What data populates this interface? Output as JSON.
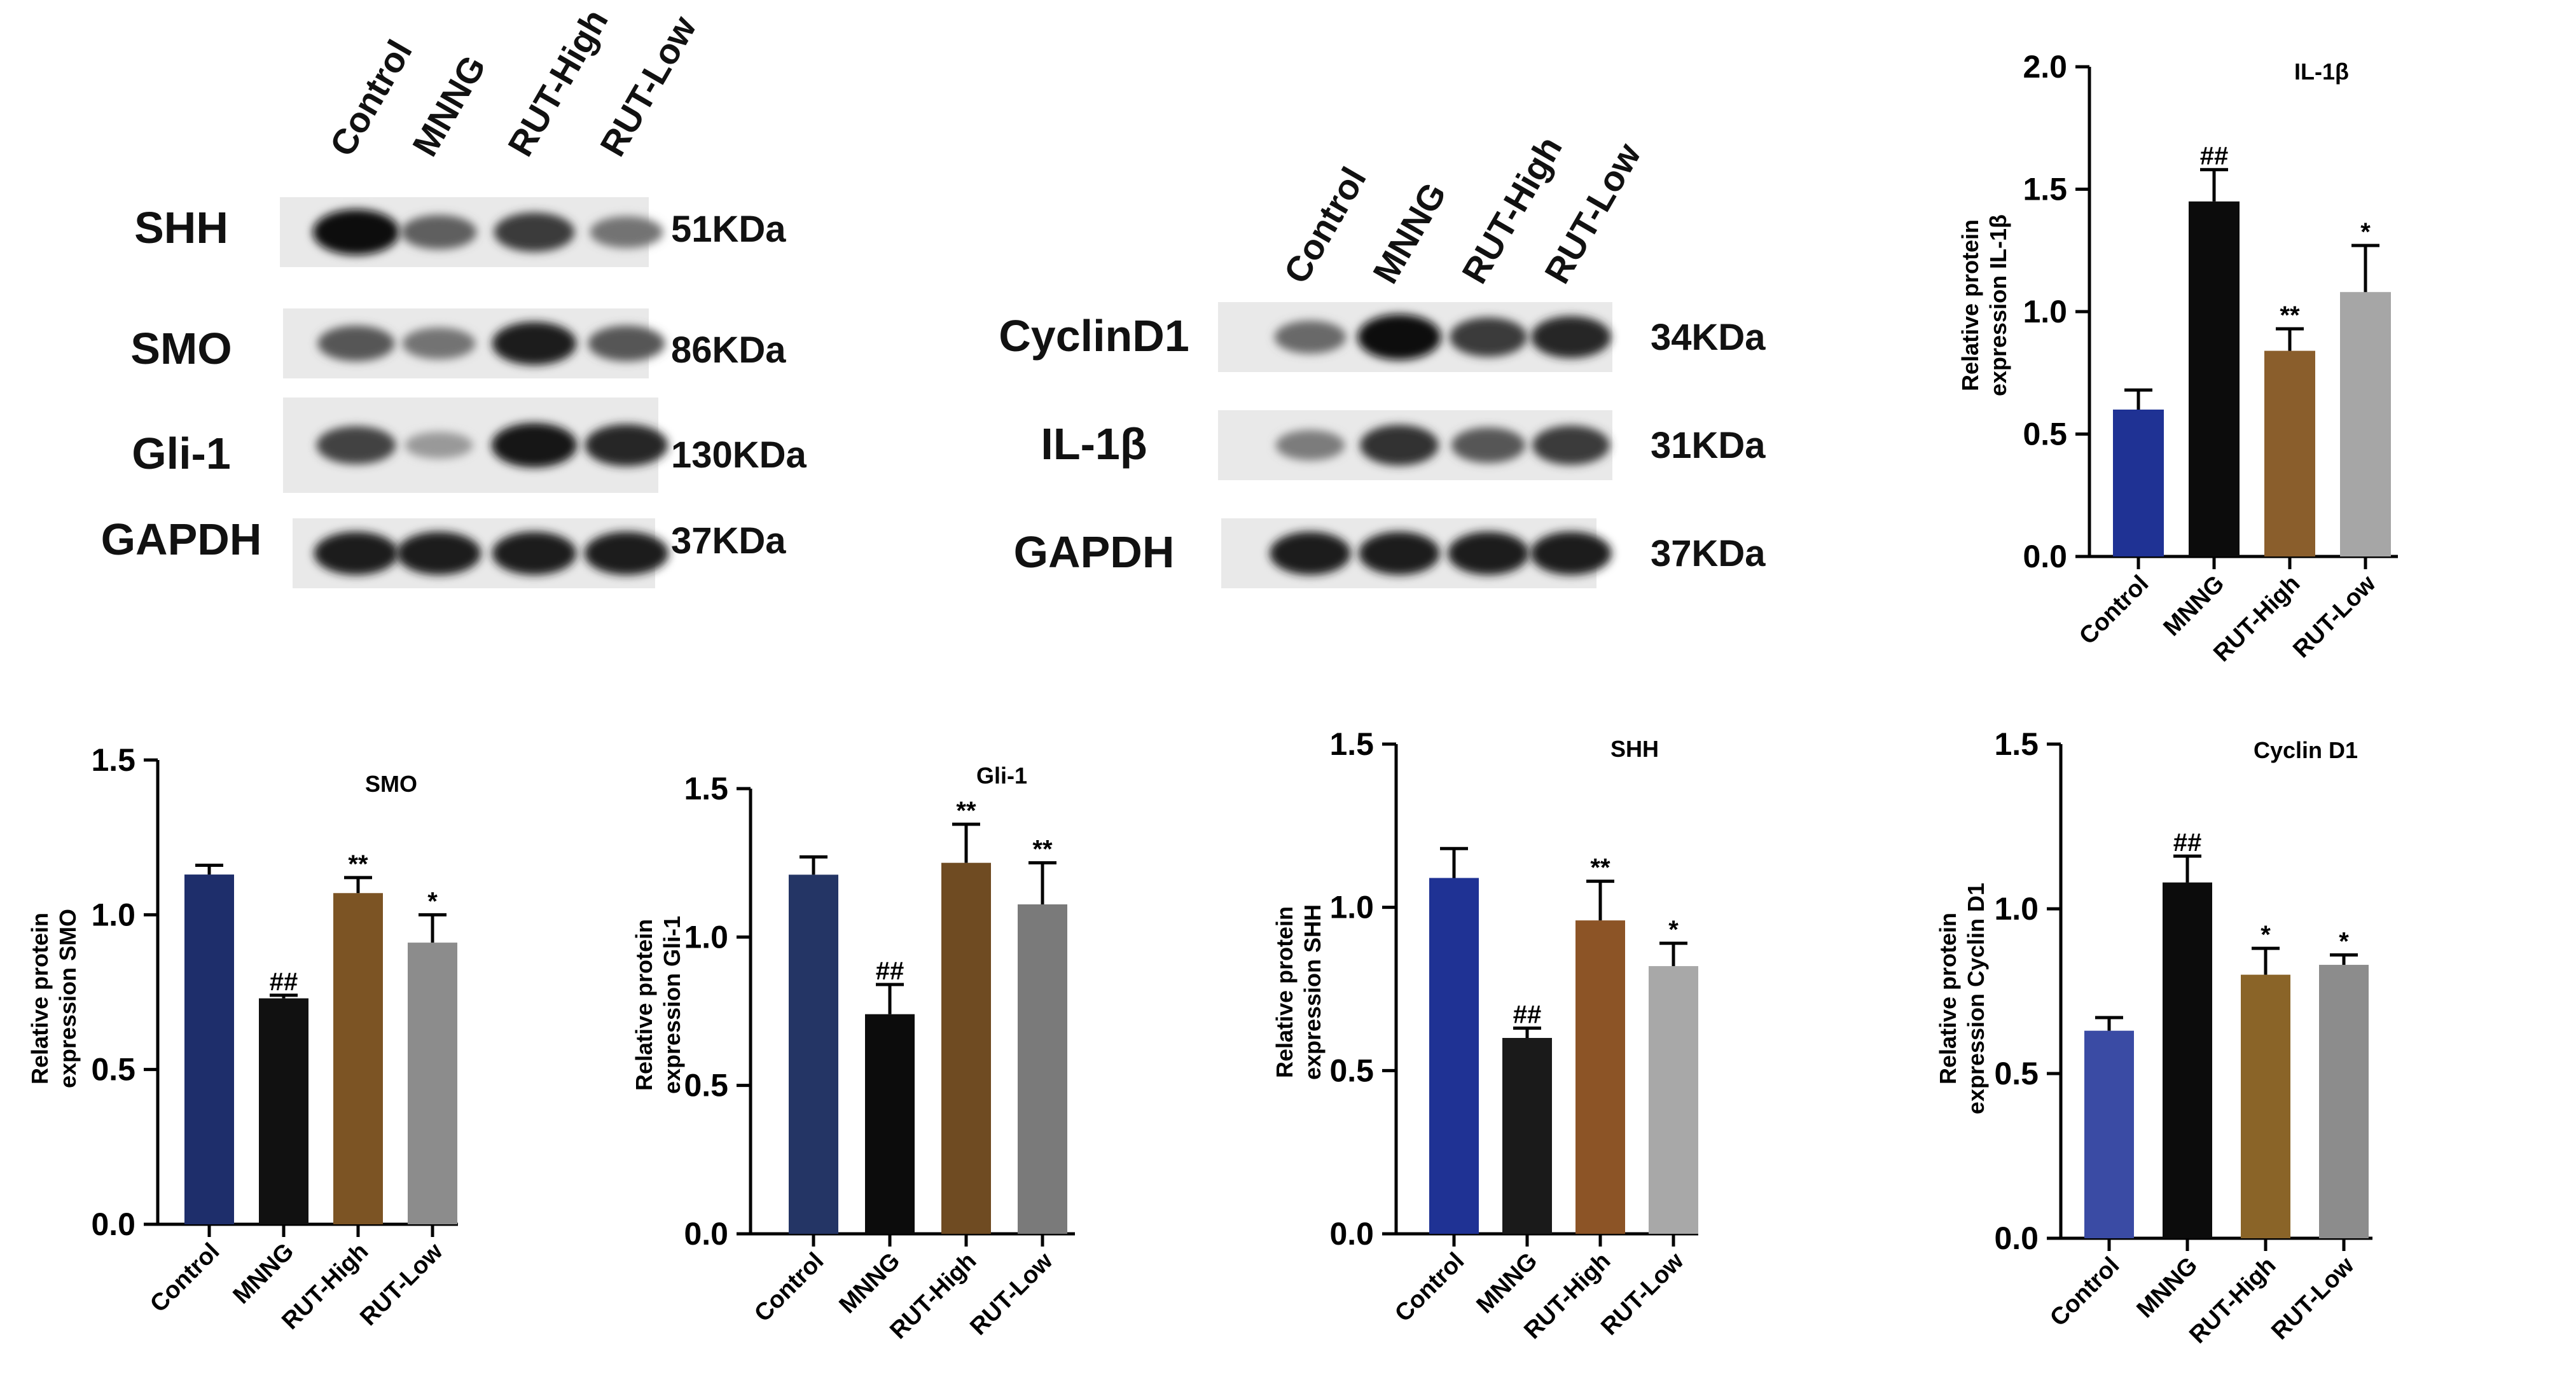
{
  "blot_panels": [
    {
      "lanes": [
        "Control",
        "MNNG",
        "RUT-High",
        "RUT-Low"
      ],
      "proteins": [
        {
          "name": "SHH",
          "size": "51KDa",
          "intensities": [
            1.0,
            0.55,
            0.75,
            0.45
          ]
        },
        {
          "name": "SMO",
          "size": "86KDa",
          "intensities": [
            0.6,
            0.45,
            0.9,
            0.6
          ]
        },
        {
          "name": "Gli-1",
          "size": "130KDa",
          "intensities": [
            0.7,
            0.25,
            0.95,
            0.85
          ]
        },
        {
          "name": "GAPDH",
          "size": "37KDa",
          "intensities": [
            0.9,
            0.9,
            0.9,
            0.9
          ]
        }
      ]
    },
    {
      "lanes": [
        "Control",
        "MNNG",
        "RUT-High",
        "RUT-Low"
      ],
      "proteins": [
        {
          "name": "CyclinD1",
          "size": "34KDa",
          "intensities": [
            0.5,
            1.0,
            0.75,
            0.85
          ]
        },
        {
          "name": "IL-1β",
          "size": "31KDa",
          "intensities": [
            0.4,
            0.8,
            0.6,
            0.75
          ]
        },
        {
          "name": "GAPDH",
          "size": "37KDa",
          "intensities": [
            0.9,
            0.9,
            0.9,
            0.9
          ]
        }
      ]
    }
  ],
  "chart_data": [
    {
      "type": "bar",
      "title": "IL-1β",
      "ylabel": "Relative protein\nexpression IL-1β",
      "categories": [
        "Control",
        "MNNG",
        "RUT-High",
        "RUT-Low"
      ],
      "values": [
        0.6,
        1.45,
        0.84,
        1.08
      ],
      "errors": [
        0.08,
        0.13,
        0.09,
        0.19
      ],
      "annotations": [
        "",
        "##",
        "**",
        "*"
      ],
      "colors": [
        "#1f3294",
        "#0c0c0c",
        "#8a5e2c",
        "#a6a6a6"
      ],
      "ylim": [
        0,
        2.0
      ],
      "yticks": [
        "0.0",
        "0.5",
        "1.0",
        "1.5",
        "2.0"
      ]
    },
    {
      "type": "bar",
      "title": "SMO",
      "ylabel": "Relative protein\nexpression SMO",
      "categories": [
        "Control",
        "MNNG",
        "RUT-High",
        "RUT-Low"
      ],
      "values": [
        1.13,
        0.73,
        1.07,
        0.91
      ],
      "errors": [
        0.03,
        0.01,
        0.05,
        0.09
      ],
      "annotations": [
        "",
        "##",
        "**",
        "*"
      ],
      "colors": [
        "#1e2e6b",
        "#111111",
        "#7c5424",
        "#8c8c8c"
      ],
      "ylim": [
        0,
        1.5
      ],
      "yticks": [
        "0.0",
        "0.5",
        "1.0",
        "1.5"
      ]
    },
    {
      "type": "bar",
      "title": "Gli-1",
      "ylabel": "Relative protein\nexpression Gli-1",
      "categories": [
        "Control",
        "MNNG",
        "RUT-High",
        "RUT-Low"
      ],
      "values": [
        1.21,
        0.74,
        1.25,
        1.11
      ],
      "errors": [
        0.06,
        0.1,
        0.13,
        0.14
      ],
      "annotations": [
        "",
        "##",
        "**",
        "**"
      ],
      "colors": [
        "#243565",
        "#0c0c0c",
        "#6f4b22",
        "#7a7a7a"
      ],
      "ylim": [
        0,
        1.5
      ],
      "yticks": [
        "0.0",
        "0.5",
        "1.0",
        "1.5"
      ]
    },
    {
      "type": "bar",
      "title": "SHH",
      "ylabel": "Relative protein\nexpression SHH",
      "categories": [
        "Control",
        "MNNG",
        "RUT-High",
        "RUT-Low"
      ],
      "values": [
        1.09,
        0.6,
        0.96,
        0.82
      ],
      "errors": [
        0.09,
        0.03,
        0.12,
        0.07
      ],
      "annotations": [
        "",
        "##",
        "**",
        "*"
      ],
      "colors": [
        "#1f3294",
        "#1a1a1a",
        "#8c5426",
        "#a8a8a8"
      ],
      "ylim": [
        0,
        1.5
      ],
      "yticks": [
        "0.0",
        "0.5",
        "1.0",
        "1.5"
      ]
    },
    {
      "type": "bar",
      "title": "Cyclin D1",
      "ylabel": "Relative protein\nexpression Cyclin D1",
      "categories": [
        "Control",
        "MNNG",
        "RUT-High",
        "RUT-Low"
      ],
      "values": [
        0.63,
        1.08,
        0.8,
        0.83
      ],
      "errors": [
        0.04,
        0.08,
        0.08,
        0.03
      ],
      "annotations": [
        "",
        "##",
        "*",
        "*"
      ],
      "colors": [
        "#3a4ba4",
        "#0c0c0c",
        "#8a6428",
        "#8c8c8c"
      ],
      "ylim": [
        0,
        1.5
      ],
      "yticks": [
        "0.0",
        "0.5",
        "1.0",
        "1.5"
      ]
    }
  ]
}
